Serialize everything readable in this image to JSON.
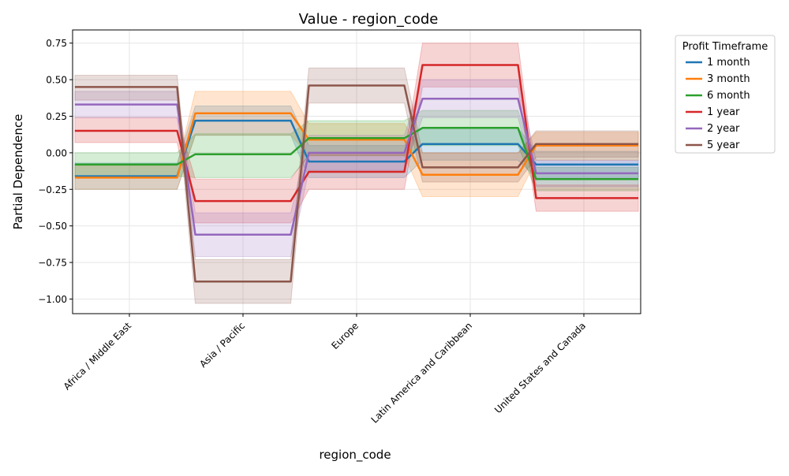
{
  "chart_data": {
    "type": "line",
    "title": "Value - region_code",
    "xlabel": "region_code",
    "ylabel": "Partial Dependence",
    "ylim": [
      -1.1,
      0.84
    ],
    "yticks": [
      0.75,
      0.5,
      0.25,
      0.0,
      -0.25,
      -0.5,
      -0.75,
      -1.0
    ],
    "ytick_labels": [
      "0.75",
      "0.50",
      "0.25",
      "0.00",
      "−0.25",
      "−0.50",
      "−0.75",
      "−1.00"
    ],
    "categories": [
      "Africa / Middle East",
      "Asia / Pacific",
      "Europe",
      "Latin America and Caribbean",
      "United States and Canada"
    ],
    "grid": true,
    "legend": {
      "title": "Profit Timeframe",
      "position": "outside-right"
    },
    "series": [
      {
        "name": "1 month",
        "color": "#1f77b4",
        "values": [
          -0.16,
          0.22,
          -0.06,
          0.06,
          -0.08
        ],
        "lower": [
          -0.25,
          0.12,
          -0.17,
          -0.05,
          -0.17
        ],
        "upper": [
          -0.07,
          0.32,
          0.05,
          0.17,
          0.01
        ]
      },
      {
        "name": "3 month",
        "color": "#ff7f0e",
        "values": [
          -0.17,
          0.27,
          0.09,
          -0.15,
          0.05
        ],
        "lower": [
          -0.25,
          0.12,
          -0.02,
          -0.3,
          -0.05
        ],
        "upper": [
          -0.09,
          0.42,
          0.2,
          0.0,
          0.14
        ]
      },
      {
        "name": "6 month",
        "color": "#2ca02c",
        "values": [
          -0.08,
          -0.01,
          0.1,
          0.17,
          -0.18
        ],
        "lower": [
          -0.16,
          -0.17,
          -0.02,
          0.05,
          -0.26
        ],
        "upper": [
          0.0,
          0.13,
          0.22,
          0.29,
          -0.1
        ]
      },
      {
        "name": "1 year",
        "color": "#d62728",
        "values": [
          0.15,
          -0.33,
          -0.13,
          0.6,
          -0.31
        ],
        "lower": [
          0.07,
          -0.48,
          -0.25,
          0.45,
          -0.4
        ],
        "upper": [
          0.24,
          -0.18,
          -0.01,
          0.75,
          -0.22
        ]
      },
      {
        "name": "2 year",
        "color": "#9467bd",
        "values": [
          0.33,
          -0.56,
          0.0,
          0.37,
          -0.14
        ],
        "lower": [
          0.24,
          -0.71,
          -0.12,
          0.24,
          -0.23
        ],
        "upper": [
          0.42,
          -0.41,
          0.12,
          0.5,
          -0.05
        ]
      },
      {
        "name": "5 year",
        "color": "#8c564b",
        "values": [
          0.45,
          -0.88,
          0.46,
          -0.1,
          0.06
        ],
        "lower": [
          0.36,
          -1.03,
          0.34,
          -0.2,
          -0.03
        ],
        "upper": [
          0.53,
          -0.73,
          0.58,
          0.0,
          0.15
        ]
      }
    ]
  }
}
